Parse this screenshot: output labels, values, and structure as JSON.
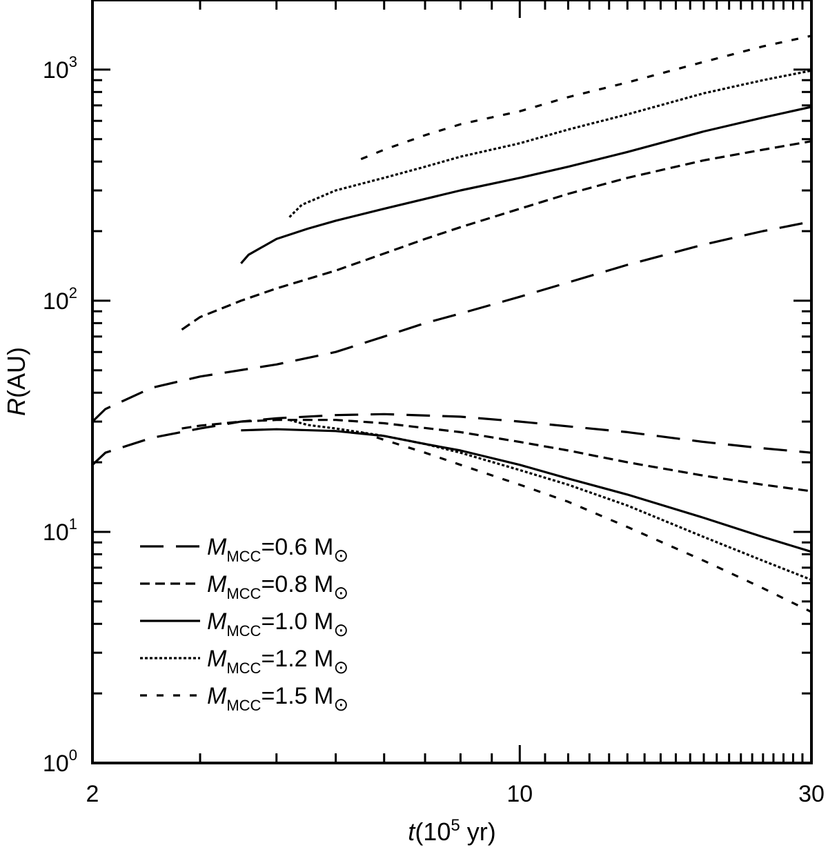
{
  "chart_data": {
    "type": "line",
    "title": "",
    "xlabel": {
      "var": "t",
      "pre": "(10",
      "sup": "5",
      "post": " yr)"
    },
    "ylabel": {
      "var": "R",
      "post": "(AU)"
    },
    "xscale": "log",
    "yscale": "log",
    "xlim": [
      2,
      30
    ],
    "ylim": [
      1,
      2000
    ],
    "grid": false,
    "legend_position": "bottom-left",
    "x_ticklabels": [
      {
        "value": 2,
        "label": "2"
      },
      {
        "value": 10,
        "label": "10"
      },
      {
        "value": 30,
        "label": "30"
      }
    ],
    "y_ticklabels": [
      {
        "value": 1,
        "base": "10",
        "exp": "0"
      },
      {
        "value": 10,
        "base": "10",
        "exp": "1"
      },
      {
        "value": 100,
        "base": "10",
        "exp": "2"
      },
      {
        "value": 1000,
        "base": "10",
        "exp": "3"
      }
    ],
    "series": [
      {
        "legend": {
          "var": "M",
          "sub": "MCC",
          "value": "=0.6 M",
          "sym": "⊙"
        },
        "dash": "34 18",
        "color": "#000000",
        "curves": [
          {
            "x": [
              2.0,
              2.1,
              2.5,
              3.0,
              4.0,
              5.0,
              6.0,
              7.0,
              8.0,
              10.0,
              12.0,
              15.0,
              20.0,
              25.0,
              30.0
            ],
            "y": [
              30,
              34,
              42,
              47,
              53,
              60,
              70,
              80,
              88,
              104,
              120,
              143,
              175,
              200,
              220
            ]
          },
          {
            "x": [
              2.0,
              2.1,
              2.5,
              3.0,
              3.5,
              4.0,
              5.0,
              6.0,
              8.0,
              10.0,
              15.0,
              20.0,
              25.0,
              30.0
            ],
            "y": [
              19.5,
              22,
              25.5,
              28,
              30,
              31,
              32,
              32.3,
              31.5,
              30,
              27,
              24.5,
              23,
              22
            ]
          }
        ]
      },
      {
        "legend": {
          "var": "M",
          "sub": "MCC",
          "value": "=0.8 M",
          "sym": "⊙"
        },
        "dash": "14 8",
        "color": "#000000",
        "curves": [
          {
            "x": [
              2.8,
              3.0,
              3.5,
              4.0,
              5.0,
              6.0,
              7.0,
              8.0,
              10.0,
              12.0,
              15.0,
              20.0,
              25.0,
              30.0
            ],
            "y": [
              75,
              85,
              100,
              113,
              135,
              160,
              185,
              208,
              250,
              290,
              340,
              405,
              450,
              490
            ]
          },
          {
            "x": [
              2.8,
              3.0,
              3.5,
              4.0,
              5.0,
              6.0,
              8.0,
              10.0,
              12.0,
              15.0,
              20.0,
              25.0,
              30.0
            ],
            "y": [
              28,
              28.8,
              30,
              30.5,
              30.5,
              29.5,
              27,
              24.5,
              22.5,
              20,
              17.5,
              16,
              15
            ]
          }
        ]
      },
      {
        "legend": {
          "var": "M",
          "sub": "MCC",
          "value": "=1.0 M",
          "sym": "⊙"
        },
        "dash": "",
        "color": "#000000",
        "curves": [
          {
            "x": [
              3.5,
              3.6,
              4.0,
              4.5,
              5.0,
              6.0,
              8.0,
              10.0,
              12.0,
              15.0,
              20.0,
              25.0,
              30.0
            ],
            "y": [
              145,
              158,
              185,
              205,
              222,
              250,
              300,
              340,
              380,
              440,
              540,
              620,
              690
            ]
          },
          {
            "x": [
              3.5,
              4.0,
              5.0,
              6.0,
              7.0,
              8.0,
              10.0,
              12.0,
              15.0,
              20.0,
              25.0,
              30.0
            ],
            "y": [
              27.5,
              27.8,
              27.3,
              26,
              24,
              22.5,
              19.5,
              17,
              14.5,
              11.5,
              9.5,
              8.2
            ]
          }
        ]
      },
      {
        "legend": {
          "var": "M",
          "sub": "MCC",
          "value": "=1.2 M",
          "sym": "⊙"
        },
        "dash": "4 3",
        "color": "#000000",
        "curves": [
          {
            "x": [
              4.2,
              4.4,
              5.0,
              6.0,
              7.0,
              8.0,
              10.0,
              12.0,
              15.0,
              20.0,
              25.0,
              30.0
            ],
            "y": [
              230,
              260,
              300,
              340,
              380,
              420,
              480,
              550,
              640,
              790,
              900,
              990
            ]
          },
          {
            "x": [
              4.2,
              4.5,
              5.0,
              6.0,
              7.0,
              8.0,
              10.0,
              12.0,
              15.0,
              20.0,
              25.0,
              30.0
            ],
            "y": [
              30.5,
              29,
              28,
              26,
              24,
              22,
              18.5,
              16,
              13,
              9.5,
              7.5,
              6.2
            ]
          }
        ]
      },
      {
        "legend": {
          "var": "M",
          "sub": "MCC",
          "value": "=1.5 M",
          "sym": "⊙"
        },
        "dash": "10 14",
        "color": "#000000",
        "curves": [
          {
            "x": [
              5.5,
              6.0,
              7.0,
              8.0,
              10.0,
              12.0,
              15.0,
              20.0,
              25.0,
              30.0
            ],
            "y": [
              410,
              450,
              520,
              580,
              660,
              760,
              880,
              1080,
              1260,
              1400
            ]
          },
          {
            "x": [
              5.5,
              6.0,
              7.0,
              8.0,
              10.0,
              12.0,
              15.0,
              20.0,
              25.0,
              30.0
            ],
            "y": [
              27,
              25,
              22,
              19.5,
              16,
              13.5,
              10.5,
              7.5,
              5.7,
              4.5
            ]
          }
        ]
      }
    ]
  }
}
